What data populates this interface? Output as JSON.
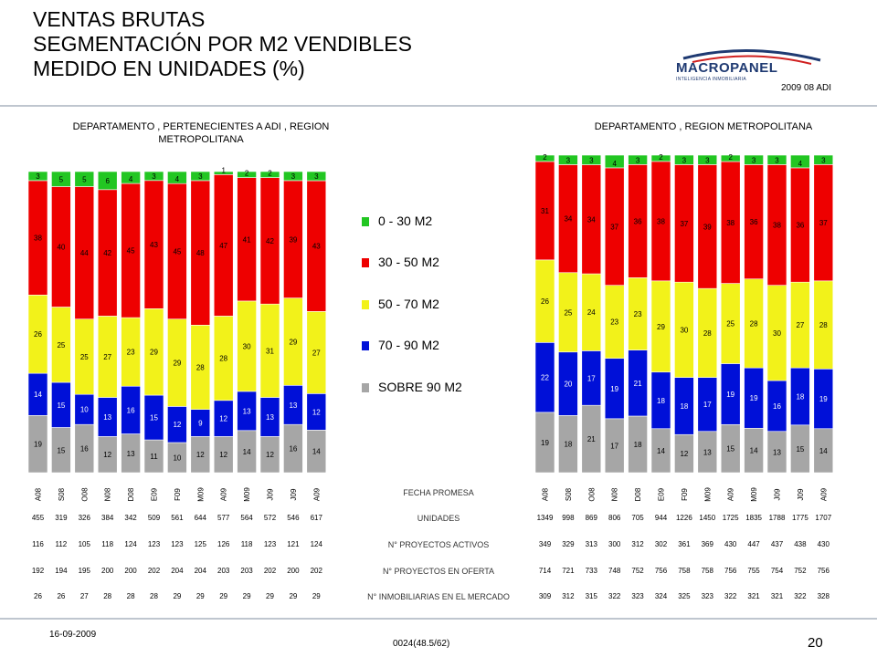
{
  "header": {
    "title_lines": [
      "VENTAS BRUTAS",
      "SEGMENTACIÓN POR M2 VENDIBLES",
      "MEDIDO EN UNIDADES (%)"
    ],
    "logo_text": "MACROPANEL",
    "logo_subtext": "INTELIGENCIA INMOBILIARIA",
    "stamp": "2009 08 ADI"
  },
  "colors": {
    "s0_30": "#22c622",
    "s30_50": "#ee0000",
    "s50_70": "#f2f21a",
    "s70_90": "#0010d8",
    "s90": "#a6a6a6"
  },
  "legend": [
    "0 - 30 M2",
    "30 - 50 M2",
    "50 - 70 M2",
    "70 - 90 M2",
    "SOBRE 90 M2"
  ],
  "table_labels": [
    "FECHA PROMESA",
    "UNIDADES",
    "N° PROYECTOS ACTIVOS",
    "N° PROYECTOS EN OFERTA",
    "N° INMOBILIARIAS EN EL MERCADO"
  ],
  "chart_data": [
    {
      "type": "bar",
      "stacked": true,
      "title": "DEPARTAMENTO , PERTENECIENTES A ADI , REGION METROPOLITANA",
      "categories": [
        "A08",
        "S08",
        "O08",
        "N08",
        "D08",
        "E09",
        "F09",
        "M09",
        "A09",
        "M09",
        "J09",
        "J09",
        "A09"
      ],
      "series": [
        {
          "name": "SOBRE 90 M2",
          "color": "#a6a6a6",
          "values": [
            19,
            15,
            16,
            12,
            13,
            11,
            10,
            12,
            12,
            14,
            12,
            16,
            14
          ]
        },
        {
          "name": "70 - 90 M2",
          "color": "#0010d8",
          "values": [
            14,
            15,
            10,
            13,
            16,
            15,
            12,
            9,
            12,
            13,
            13,
            13,
            12
          ]
        },
        {
          "name": "50 - 70 M2",
          "color": "#f2f21a",
          "values": [
            26,
            25,
            25,
            27,
            23,
            29,
            29,
            28,
            28,
            30,
            31,
            29,
            27
          ]
        },
        {
          "name": "30 - 50 M2",
          "color": "#ee0000",
          "values": [
            38,
            40,
            44,
            42,
            45,
            43,
            45,
            48,
            47,
            41,
            42,
            39,
            43
          ]
        },
        {
          "name": "0 - 30 M2",
          "color": "#22c622",
          "values": [
            3,
            5,
            5,
            6,
            4,
            3,
            4,
            3,
            1,
            2,
            2,
            3,
            3
          ]
        }
      ],
      "table": {
        "unidades": [
          455,
          319,
          326,
          384,
          342,
          509,
          561,
          644,
          577,
          564,
          572,
          546,
          617
        ],
        "proyectos_activos": [
          116,
          112,
          105,
          118,
          124,
          123,
          123,
          125,
          126,
          118,
          123,
          121,
          124
        ],
        "proyectos_oferta": [
          192,
          194,
          195,
          200,
          200,
          202,
          204,
          204,
          203,
          203,
          202,
          200,
          202
        ],
        "inmobiliarias": [
          26,
          26,
          27,
          28,
          28,
          28,
          29,
          29,
          29,
          29,
          29,
          29,
          29
        ]
      }
    },
    {
      "type": "bar",
      "stacked": true,
      "title": "DEPARTAMENTO , REGION METROPOLITANA",
      "categories": [
        "A08",
        "S08",
        "O08",
        "N08",
        "D08",
        "E09",
        "F09",
        "M09",
        "A09",
        "M09",
        "J09",
        "J09",
        "A09"
      ],
      "series": [
        {
          "name": "SOBRE 90 M2",
          "color": "#a6a6a6",
          "values": [
            19,
            18,
            21,
            17,
            18,
            14,
            12,
            13,
            15,
            14,
            13,
            15,
            14
          ]
        },
        {
          "name": "70 - 90 M2",
          "color": "#0010d8",
          "values": [
            22,
            20,
            17,
            19,
            21,
            18,
            18,
            17,
            19,
            19,
            16,
            18,
            19
          ]
        },
        {
          "name": "50 - 70 M2",
          "color": "#f2f21a",
          "values": [
            26,
            25,
            24,
            23,
            23,
            29,
            30,
            28,
            25,
            28,
            30,
            27,
            28
          ]
        },
        {
          "name": "30 - 50 M2",
          "color": "#ee0000",
          "values": [
            31,
            34,
            34,
            37,
            36,
            38,
            37,
            39,
            38,
            36,
            38,
            36,
            37
          ]
        },
        {
          "name": "0 - 30 M2",
          "color": "#22c622",
          "values": [
            2,
            3,
            3,
            4,
            3,
            2,
            3,
            3,
            2,
            3,
            3,
            4,
            3
          ]
        }
      ],
      "table": {
        "unidades": [
          1349,
          998,
          869,
          806,
          705,
          944,
          1226,
          1450,
          1725,
          1835,
          1788,
          1775,
          1707
        ],
        "proyectos_activos": [
          349,
          329,
          313,
          300,
          312,
          302,
          361,
          369,
          430,
          447,
          437,
          438,
          430
        ],
        "proyectos_oferta": [
          714,
          721,
          733,
          748,
          752,
          756,
          758,
          758,
          756,
          755,
          754,
          752,
          756
        ],
        "inmobiliarias": [
          309,
          312,
          315,
          322,
          323,
          324,
          325,
          323,
          322,
          321,
          321,
          322,
          328
        ]
      }
    }
  ],
  "footer": {
    "date": "16-09-2009",
    "ref": "0024(48.5/62)",
    "page": "20"
  }
}
